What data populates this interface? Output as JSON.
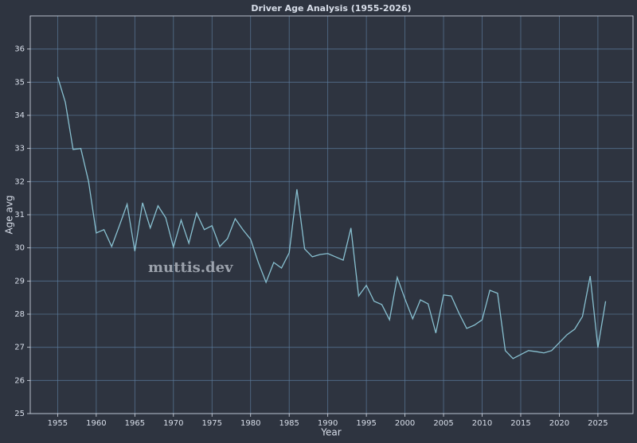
{
  "chart_data": {
    "type": "line",
    "title": "Driver Age Analysis (1955-2026)",
    "xlabel": "Year",
    "ylabel": "Age avg",
    "annotation": "muttis.dev",
    "x": [
      1955,
      1956,
      1957,
      1958,
      1959,
      1960,
      1961,
      1962,
      1963,
      1964,
      1965,
      1966,
      1967,
      1968,
      1969,
      1970,
      1971,
      1972,
      1973,
      1974,
      1975,
      1976,
      1977,
      1978,
      1979,
      1980,
      1981,
      1982,
      1983,
      1984,
      1985,
      1986,
      1987,
      1988,
      1989,
      1990,
      1991,
      1992,
      1993,
      1994,
      1995,
      1996,
      1997,
      1998,
      1999,
      2000,
      2001,
      2002,
      2003,
      2004,
      2005,
      2006,
      2007,
      2008,
      2009,
      2010,
      2011,
      2012,
      2013,
      2014,
      2015,
      2016,
      2017,
      2018,
      2019,
      2020,
      2021,
      2022,
      2023,
      2024,
      2025,
      2026
    ],
    "series": [
      {
        "name": "Age avg",
        "color": "#88c0d0",
        "values": [
          35.16,
          34.39,
          32.97,
          33.0,
          32.01,
          30.45,
          30.55,
          30.04,
          30.67,
          31.32,
          29.9,
          31.36,
          30.6,
          31.27,
          30.91,
          30.02,
          30.84,
          30.14,
          31.05,
          30.55,
          30.67,
          30.04,
          30.28,
          30.88,
          30.55,
          30.26,
          29.56,
          28.96,
          29.56,
          29.39,
          29.85,
          31.77,
          29.97,
          29.73,
          29.8,
          29.83,
          29.73,
          29.63,
          30.6,
          28.55,
          28.87,
          28.39,
          28.29,
          27.83,
          29.11,
          28.46,
          27.86,
          28.43,
          28.31,
          27.43,
          28.58,
          28.55,
          28.03,
          27.57,
          27.67,
          27.83,
          28.72,
          28.63,
          26.9,
          26.66,
          26.78,
          26.9,
          26.87,
          26.83,
          26.9,
          27.14,
          27.38,
          27.55,
          27.93,
          29.15,
          26.99,
          28.39
        ]
      }
    ],
    "xlim": [
      1951.45,
      2029.55
    ],
    "ylim": [
      25,
      37
    ],
    "xticks": [
      1955,
      1960,
      1965,
      1970,
      1975,
      1980,
      1985,
      1990,
      1995,
      2000,
      2005,
      2010,
      2015,
      2020,
      2025
    ],
    "yticks": [
      25,
      26,
      27,
      28,
      29,
      30,
      31,
      32,
      33,
      34,
      35,
      36
    ],
    "grid": true
  }
}
